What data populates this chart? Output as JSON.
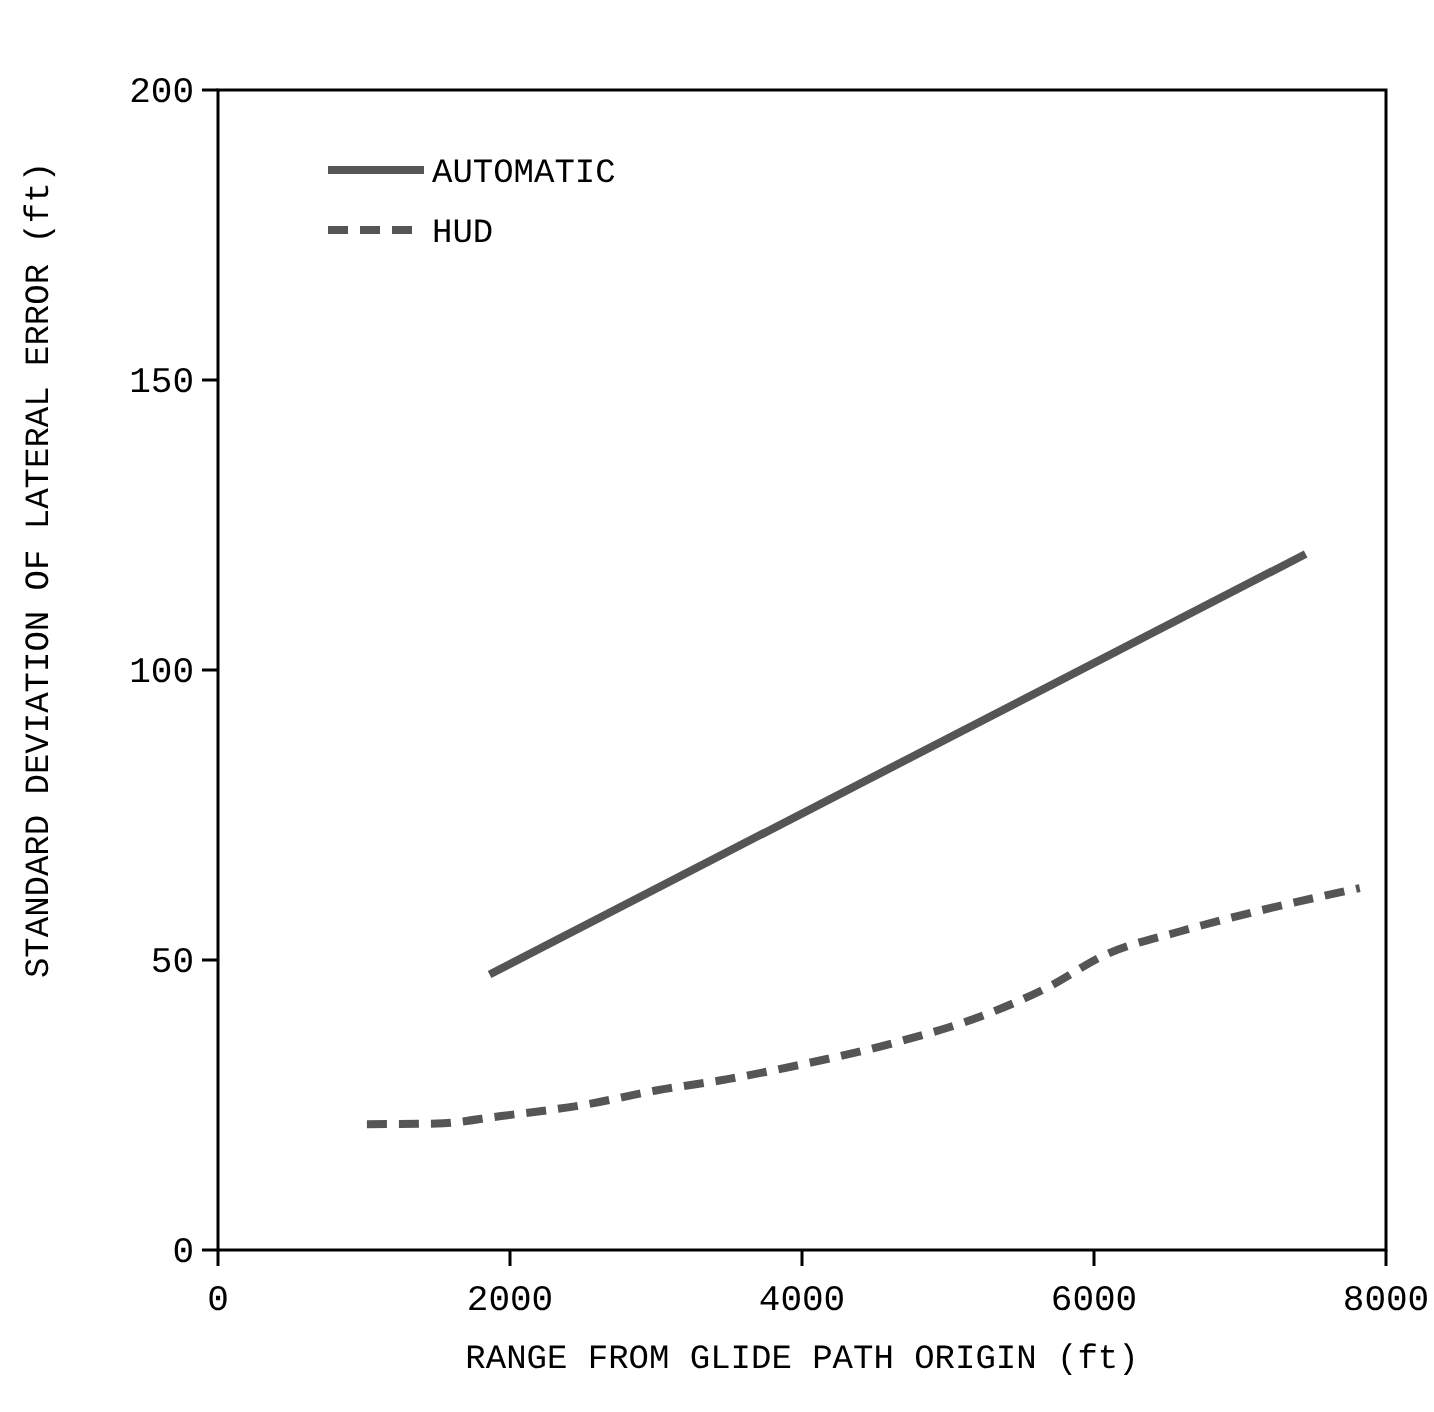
{
  "chart_data": {
    "type": "line",
    "xlabel": "RANGE FROM GLIDE PATH ORIGIN (ft)",
    "ylabel": "STANDARD DEVIATION OF LATERAL ERROR (ft)",
    "xlim": [
      0,
      8000
    ],
    "ylim": [
      0,
      200
    ],
    "xticks": [
      0,
      2000,
      4000,
      6000,
      8000
    ],
    "yticks": [
      0,
      50,
      100,
      150,
      200
    ],
    "legend": "top left",
    "grid": false,
    "series": [
      {
        "name": "AUTOMATIC",
        "color": "#555555",
        "line_style": "solid",
        "x": [
          1860,
          7450
        ],
        "values": [
          47.5,
          120
        ]
      },
      {
        "name": "HUD",
        "color": "#555555",
        "line_style": "dashed",
        "x": [
          1020,
          1500,
          1940,
          2500,
          3000,
          3500,
          4000,
          4600,
          5300,
          5700,
          6060,
          6600,
          7150,
          7820
        ],
        "values": [
          21.7,
          21.8,
          23.1,
          25,
          27.5,
          29.5,
          32,
          35.5,
          41,
          45.5,
          50.7,
          55,
          58.6,
          62.4
        ]
      }
    ]
  }
}
